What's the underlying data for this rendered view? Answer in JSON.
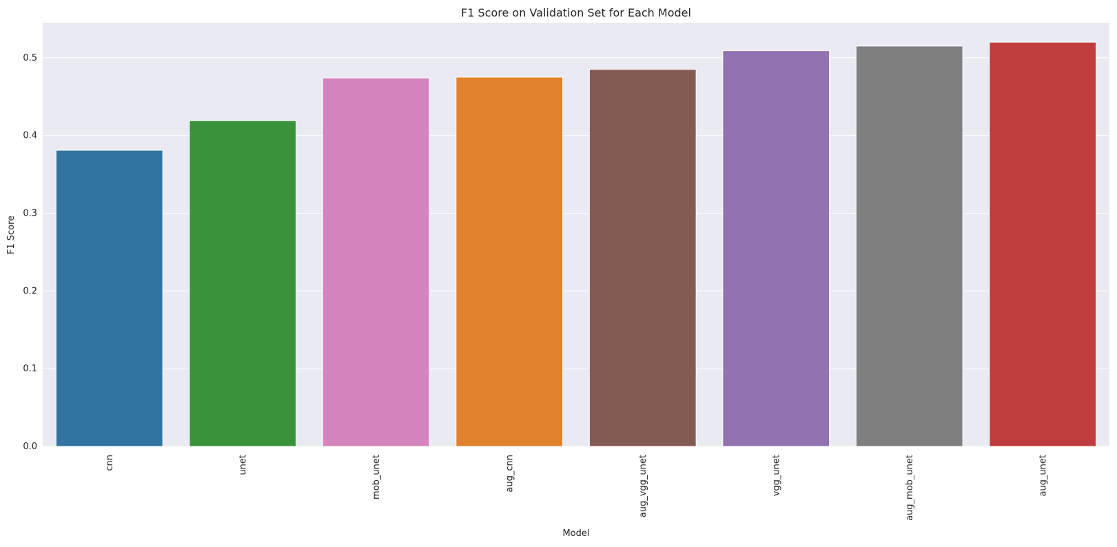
{
  "chart_data": {
    "type": "bar",
    "title": "F1 Score on Validation Set for Each Model",
    "xlabel": "Model",
    "ylabel": "F1 Score",
    "categories": [
      "cnn",
      "unet",
      "mob_unet",
      "aug_cnn",
      "aug_vgg_unet",
      "vgg_unet",
      "aug_mob_unet",
      "aug_unet"
    ],
    "values": [
      0.381,
      0.419,
      0.474,
      0.475,
      0.485,
      0.509,
      0.515,
      0.52
    ],
    "colors": [
      "#3274a1",
      "#3a923a",
      "#d684bd",
      "#e1812c",
      "#845b53",
      "#9372b2",
      "#7f7f7f",
      "#c03d3e"
    ],
    "ylim": [
      0,
      0.545
    ],
    "yticks": [
      "0.0",
      "0.1",
      "0.2",
      "0.3",
      "0.4",
      "0.5"
    ],
    "grid": true,
    "background": "#eaeaf2",
    "x_tick_rotation": "vertical"
  }
}
